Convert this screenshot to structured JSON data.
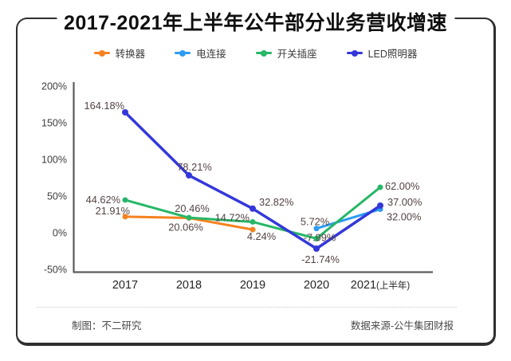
{
  "card": {
    "title": "2017-2021年上半年公牛部分业务营收增速",
    "footer_left": "制图：不二研究",
    "footer_right": "数据来源-公牛集团财报",
    "border_color": "#2e2e2e"
  },
  "chart_data": {
    "type": "line",
    "title": "2017-2021年上半年公牛部分业务营收增速",
    "categories": [
      "2017",
      "2018",
      "2019",
      "2020",
      "2021(上半年)"
    ],
    "y_ticks": [
      200,
      150,
      100,
      50,
      0,
      -50
    ],
    "y_tick_suffix": "%",
    "ylim": [
      -50,
      200
    ],
    "grid": false,
    "legend_position": "top",
    "axis_color": "#5c5c5c",
    "tick_label_color": "#3d3d3d",
    "x_label_color": "#262626",
    "label_color": "#544343",
    "series": [
      {
        "name": "转换器",
        "color": "#F5821E",
        "points": [
          {
            "x": 0,
            "v": 21.91,
            "label": "21.91%",
            "dx": 6,
            "dy": -3,
            "anchor": "end"
          },
          {
            "x": 1,
            "v": 20.06,
            "label": "20.06%",
            "dx": -4,
            "dy": 16,
            "anchor": "middle"
          },
          {
            "x": 2,
            "v": 4.24,
            "label": "4.24%",
            "dx": 11,
            "dy": 13,
            "anchor": "middle"
          }
        ]
      },
      {
        "name": "电连接",
        "color": "#2E9BF0",
        "points": [
          {
            "x": 3,
            "v": 5.72,
            "label": "5.72%",
            "dx": -2,
            "dy": -4,
            "anchor": "middle"
          },
          {
            "x": 4,
            "v": 32.0,
            "label": "32.00%",
            "dx": 8,
            "dy": 14,
            "anchor": "start"
          }
        ]
      },
      {
        "name": "开关插座",
        "color": "#26B767",
        "points": [
          {
            "x": 0,
            "v": 44.62,
            "label": "44.62%",
            "dx": -6,
            "dy": 4,
            "anchor": "end"
          },
          {
            "x": 1,
            "v": 20.46,
            "label": "20.46%",
            "dx": 4,
            "dy": -7,
            "anchor": "middle"
          },
          {
            "x": 2,
            "v": 14.72,
            "label": "14.72%",
            "dx": -4,
            "dy": -1,
            "anchor": "end"
          },
          {
            "x": 3,
            "v": -7.99,
            "label": "-7.99%",
            "dx": 4,
            "dy": 3,
            "anchor": "middle"
          },
          {
            "x": 4,
            "v": 62.0,
            "label": "62.00%",
            "dx": 6,
            "dy": 3,
            "anchor": "start"
          }
        ]
      },
      {
        "name": "LED照明器",
        "color": "#3438DA",
        "width": 3.5,
        "points": [
          {
            "x": 0,
            "v": 164.18,
            "label": "164.18%",
            "dx": -1,
            "dy": -4,
            "anchor": "end"
          },
          {
            "x": 1,
            "v": 78.21,
            "label": "78.21%",
            "dx": 7,
            "dy": -6,
            "anchor": "middle"
          },
          {
            "x": 2,
            "v": 32.82,
            "label": "32.82%",
            "dx": 8,
            "dy": -4,
            "anchor": "start"
          },
          {
            "x": 3,
            "v": -21.74,
            "label": "-21.74%",
            "dx": 5,
            "dy": 18,
            "anchor": "middle"
          },
          {
            "x": 4,
            "v": 37.0,
            "label": "37.00%",
            "dx": 9,
            "dy": 0,
            "anchor": "start"
          }
        ]
      }
    ]
  }
}
